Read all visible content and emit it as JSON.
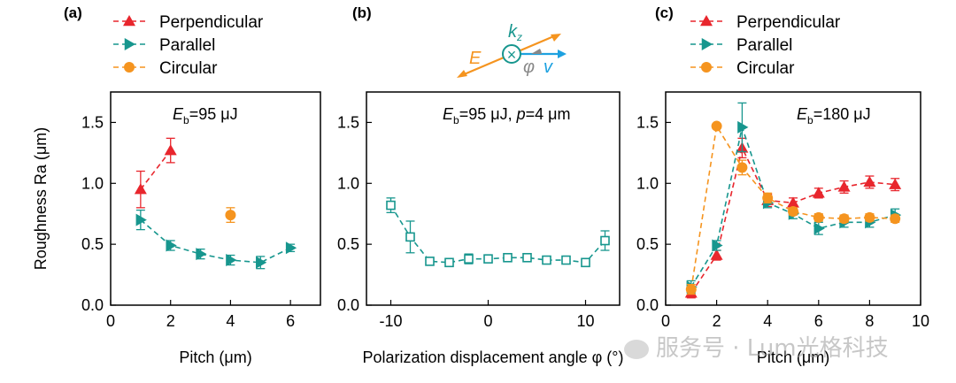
{
  "chart_data": [
    {
      "panel_label": "(a)",
      "type": "line",
      "annotation": "E_b=95 μJ",
      "annotation_main": "E",
      "annotation_sub": "b",
      "annotation_rest": "=95 μJ",
      "xlabel": "Pitch (μm)",
      "ylabel": "Roughness Ra (μm)",
      "xlim": [
        0,
        7
      ],
      "ylim": [
        0,
        1.75
      ],
      "xticks": [
        0,
        2,
        4,
        6
      ],
      "yticks": [
        0.0,
        0.5,
        1.0,
        1.5
      ],
      "xtick_labels": [
        "0",
        "2",
        "4",
        "6"
      ],
      "ytick_labels": [
        "0.0",
        "0.5",
        "1.0",
        "1.5"
      ],
      "legend": {
        "position": "top",
        "entries": [
          "Perpendicular",
          "Parallel",
          "Circular"
        ]
      },
      "series": [
        {
          "name": "Perpendicular",
          "color": "#e8262d",
          "marker": "triangle-up",
          "x": [
            1,
            2
          ],
          "y": [
            0.95,
            1.27
          ],
          "err": [
            0.15,
            0.1
          ]
        },
        {
          "name": "Parallel",
          "color": "#17968e",
          "marker": "triangle-right",
          "x": [
            1,
            2,
            3,
            4,
            5,
            6
          ],
          "y": [
            0.7,
            0.49,
            0.42,
            0.37,
            0.35,
            0.47
          ],
          "err": [
            0.08,
            0.04,
            0.04,
            0.04,
            0.05,
            0.03
          ]
        },
        {
          "name": "Circular",
          "color": "#f5941f",
          "marker": "circle",
          "x": [
            4
          ],
          "y": [
            0.74
          ],
          "err": [
            0.06
          ]
        }
      ]
    },
    {
      "panel_label": "(b)",
      "type": "line",
      "annotation": "E_b=95 μJ, p=4 μm",
      "annotation_main": "E",
      "annotation_sub": "b",
      "annotation_rest": "=95 μJ, ",
      "annotation_p": "p",
      "annotation_rest2": "=4 μm",
      "xlabel": "Polarization displacement angle φ (°)",
      "ylabel": "",
      "xlim": [
        -12.5,
        13.5
      ],
      "ylim": [
        0,
        1.75
      ],
      "xticks": [
        -10,
        0,
        10
      ],
      "yticks": [
        0.0,
        0.5,
        1.0,
        1.5
      ],
      "xtick_labels": [
        "-10",
        "0",
        "10"
      ],
      "ytick_labels": [
        "0.0",
        "0.5",
        "1.0",
        "1.5"
      ],
      "inset": {
        "E": "E",
        "k": "k",
        "k_sub": "z",
        "v": "v",
        "phi": "φ",
        "cross": "×"
      },
      "series": [
        {
          "name": "",
          "color": "#17968e",
          "marker": "square-open",
          "x": [
            -10,
            -8,
            -6,
            -4,
            -2,
            0,
            2,
            4,
            6,
            8,
            10,
            12
          ],
          "y": [
            0.82,
            0.56,
            0.36,
            0.35,
            0.38,
            0.38,
            0.39,
            0.39,
            0.37,
            0.37,
            0.35,
            0.53
          ],
          "err": [
            0.06,
            0.13,
            0.03,
            0.03,
            0.04,
            0.03,
            0.03,
            0.03,
            0.03,
            0.03,
            0.03,
            0.08
          ]
        }
      ]
    },
    {
      "panel_label": "(c)",
      "type": "line",
      "annotation": "E_b=180 μJ",
      "annotation_main": "E",
      "annotation_sub": "b",
      "annotation_rest": "=180 μJ",
      "xlabel": "Pitch (μm)",
      "ylabel": "",
      "xlim": [
        0,
        10
      ],
      "ylim": [
        0,
        1.75
      ],
      "xticks": [
        0,
        2,
        4,
        6,
        8,
        10
      ],
      "yticks": [
        0.0,
        0.5,
        1.0,
        1.5
      ],
      "xtick_labels": [
        "0",
        "2",
        "4",
        "6",
        "8",
        "10"
      ],
      "ytick_labels": [
        "0.0",
        "0.5",
        "1.0",
        "1.5"
      ],
      "legend": {
        "position": "top",
        "entries": [
          "Perpendicular",
          "Parallel",
          "Circular"
        ]
      },
      "series": [
        {
          "name": "Perpendicular",
          "color": "#e8262d",
          "marker": "triangle-up",
          "x": [
            1,
            2,
            3,
            4,
            5,
            6,
            7,
            8,
            9
          ],
          "y": [
            0.1,
            0.41,
            1.29,
            0.86,
            0.84,
            0.92,
            0.97,
            1.01,
            0.99
          ],
          "err": [
            0.04,
            0.04,
            0.08,
            0.05,
            0.04,
            0.04,
            0.05,
            0.05,
            0.05
          ]
        },
        {
          "name": "Parallel",
          "color": "#17968e",
          "marker": "triangle-right",
          "x": [
            1,
            2,
            3,
            4,
            5,
            6,
            7,
            8,
            9
          ],
          "y": [
            0.15,
            0.49,
            1.46,
            0.84,
            0.75,
            0.63,
            0.68,
            0.68,
            0.74
          ],
          "err": [
            0.05,
            0.04,
            0.2,
            0.04,
            0.04,
            0.05,
            0.04,
            0.04,
            0.05
          ]
        },
        {
          "name": "Circular",
          "color": "#f5941f",
          "marker": "circle",
          "x": [
            1,
            2,
            3,
            4,
            5,
            6,
            7,
            8,
            9
          ],
          "y": [
            0.13,
            1.47,
            1.13,
            0.88,
            0.77,
            0.72,
            0.71,
            0.72,
            0.71
          ],
          "err": [
            0.04,
            0.0,
            0.06,
            0.04,
            0.03,
            0.03,
            0.03,
            0.03,
            0.03
          ]
        }
      ]
    }
  ],
  "watermark": {
    "text": "服务号 · Lum光格科技",
    "icon": "wechat-icon"
  }
}
